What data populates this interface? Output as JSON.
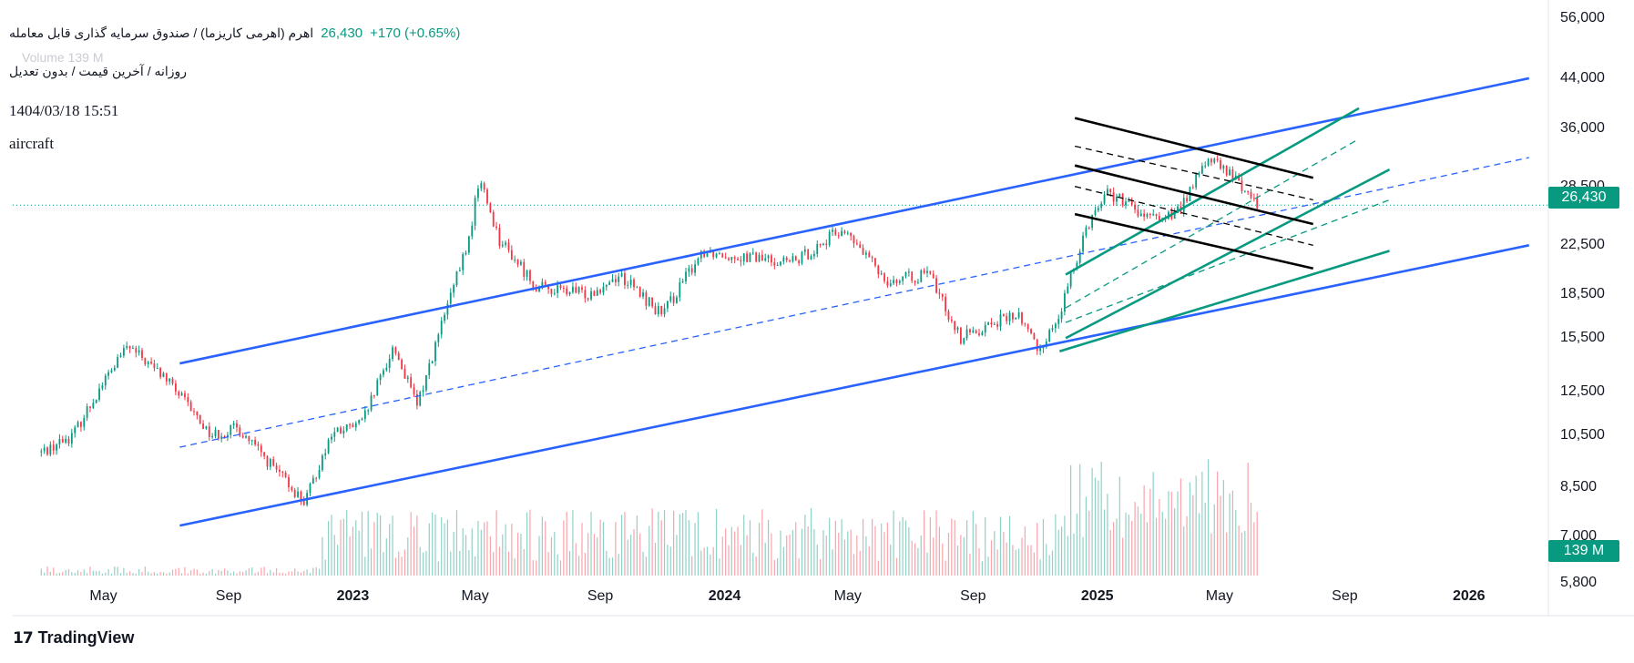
{
  "header": {
    "symbol": "اهرم (اهرمی کاریزما) / صندوق سرمایه گذاری قابل معامله",
    "last_price": "26,430",
    "change": "+170 (+0.65%)",
    "subtitle": "روزانه / آخرین قیمت / بدون تعدیل",
    "timestamp": "1404/03/18 15:51",
    "tag": "aircraft",
    "volume_ghost": "Volume  139 M"
  },
  "brand": {
    "name": "TradingView"
  },
  "colors": {
    "up": "#089981",
    "down": "#f23645",
    "channel": "#2962ff",
    "green_channel": "#089981",
    "black_channel": "#000000"
  },
  "price_axis": {
    "ticks": [
      "56,000",
      "44,000",
      "36,000",
      "28,500",
      "26,430",
      "22,500",
      "18,500",
      "15,500",
      "12,500",
      "10,500",
      "8,500",
      "7,000",
      "5,800"
    ],
    "last_price_label": "26,430",
    "volume_label": "139 M"
  },
  "time_axis": {
    "ticks": [
      "May",
      "Sep",
      "2023",
      "May",
      "Sep",
      "2024",
      "May",
      "Sep",
      "2025",
      "May",
      "Sep",
      "2026"
    ]
  },
  "chart_data": {
    "type": "candlestick",
    "scale": "log",
    "ylim": [
      5800,
      56000
    ],
    "x_range": [
      "2022-03",
      "2026-03"
    ],
    "last_price": 26430,
    "last_volume_m": 139,
    "close_path": [
      {
        "date": "2022-03-01",
        "close": 9800
      },
      {
        "date": "2022-04-01",
        "close": 10500
      },
      {
        "date": "2022-05-01",
        "close": 13000
      },
      {
        "date": "2022-05-25",
        "close": 15000
      },
      {
        "date": "2022-07-01",
        "close": 13200
      },
      {
        "date": "2022-08-15",
        "close": 10500
      },
      {
        "date": "2022-09-10",
        "close": 10800
      },
      {
        "date": "2022-10-20",
        "close": 9000
      },
      {
        "date": "2022-11-15",
        "close": 8000
      },
      {
        "date": "2022-12-10",
        "close": 10500
      },
      {
        "date": "2023-01-10",
        "close": 11000
      },
      {
        "date": "2023-02-10",
        "close": 15000
      },
      {
        "date": "2023-03-05",
        "close": 11800
      },
      {
        "date": "2023-04-01",
        "close": 17000
      },
      {
        "date": "2023-04-25",
        "close": 23000
      },
      {
        "date": "2023-05-05",
        "close": 29500
      },
      {
        "date": "2023-05-25",
        "close": 23000
      },
      {
        "date": "2023-07-01",
        "close": 19000
      },
      {
        "date": "2023-08-20",
        "close": 18500
      },
      {
        "date": "2023-09-20",
        "close": 20000
      },
      {
        "date": "2023-11-01",
        "close": 17000
      },
      {
        "date": "2023-12-10",
        "close": 22000
      },
      {
        "date": "2024-01-20",
        "close": 21500
      },
      {
        "date": "2024-03-10",
        "close": 21000
      },
      {
        "date": "2024-04-25",
        "close": 24000
      },
      {
        "date": "2024-06-10",
        "close": 19500
      },
      {
        "date": "2024-07-20",
        "close": 20000
      },
      {
        "date": "2024-08-20",
        "close": 15500
      },
      {
        "date": "2024-09-20",
        "close": 16500
      },
      {
        "date": "2024-10-15",
        "close": 17000
      },
      {
        "date": "2024-11-05",
        "close": 14800
      },
      {
        "date": "2024-11-25",
        "close": 17000
      },
      {
        "date": "2024-12-20",
        "close": 24000
      },
      {
        "date": "2025-01-10",
        "close": 28000
      },
      {
        "date": "2025-02-20",
        "close": 25000
      },
      {
        "date": "2025-03-20",
        "close": 25500
      },
      {
        "date": "2025-04-20",
        "close": 32000
      },
      {
        "date": "2025-05-20",
        "close": 29000
      },
      {
        "date": "2025-06-08",
        "close": 26430
      }
    ],
    "trendlines": [
      {
        "name": "blue-upper",
        "color": "#2962ff",
        "style": "solid",
        "from": {
          "date": "2022-07-15",
          "price": 14000
        },
        "to": {
          "date": "2026-03-01",
          "price": 44000
        }
      },
      {
        "name": "blue-mid",
        "color": "#2962ff",
        "style": "dashed",
        "from": {
          "date": "2022-07-15",
          "price": 10000
        },
        "to": {
          "date": "2026-03-01",
          "price": 32000
        }
      },
      {
        "name": "blue-lower",
        "color": "#2962ff",
        "style": "solid",
        "from": {
          "date": "2022-07-15",
          "price": 7300
        },
        "to": {
          "date": "2026-03-01",
          "price": 22500
        }
      },
      {
        "name": "green-upper",
        "color": "#089981",
        "style": "solid",
        "from": {
          "date": "2024-12-01",
          "price": 20000
        },
        "to": {
          "date": "2025-09-15",
          "price": 39000
        }
      },
      {
        "name": "green-mid-upper",
        "color": "#089981",
        "style": "dashed",
        "from": {
          "date": "2024-12-01",
          "price": 17500
        },
        "to": {
          "date": "2025-09-15",
          "price": 34500
        }
      },
      {
        "name": "green-mid",
        "color": "#089981",
        "style": "solid",
        "from": {
          "date": "2024-12-01",
          "price": 15500
        },
        "to": {
          "date": "2025-10-15",
          "price": 30500
        }
      },
      {
        "name": "green-mid-lower",
        "color": "#089981",
        "style": "dashed",
        "from": {
          "date": "2024-12-01",
          "price": 16500
        },
        "to": {
          "date": "2025-10-15",
          "price": 27000
        }
      },
      {
        "name": "green-lower",
        "color": "#089981",
        "style": "solid",
        "from": {
          "date": "2024-11-25",
          "price": 14700
        },
        "to": {
          "date": "2025-10-15",
          "price": 22000
        }
      },
      {
        "name": "black-top",
        "color": "#000000",
        "style": "solid",
        "from": {
          "date": "2024-12-10",
          "price": 37500
        },
        "to": {
          "date": "2025-08-01",
          "price": 29500
        }
      },
      {
        "name": "black-top-mid",
        "color": "#000000",
        "style": "dashed",
        "from": {
          "date": "2024-12-10",
          "price": 33500
        },
        "to": {
          "date": "2025-08-01",
          "price": 27000
        }
      },
      {
        "name": "black-mid",
        "color": "#000000",
        "style": "solid",
        "from": {
          "date": "2024-12-10",
          "price": 31000
        },
        "to": {
          "date": "2025-08-01",
          "price": 24500
        }
      },
      {
        "name": "black-mid-low",
        "color": "#000000",
        "style": "dashed",
        "from": {
          "date": "2024-12-10",
          "price": 28500
        },
        "to": {
          "date": "2025-08-01",
          "price": 22500
        }
      },
      {
        "name": "black-bottom",
        "color": "#000000",
        "style": "solid",
        "from": {
          "date": "2024-12-10",
          "price": 25500
        },
        "to": {
          "date": "2025-08-01",
          "price": 20500
        }
      }
    ],
    "grid": true,
    "legend": "none"
  }
}
